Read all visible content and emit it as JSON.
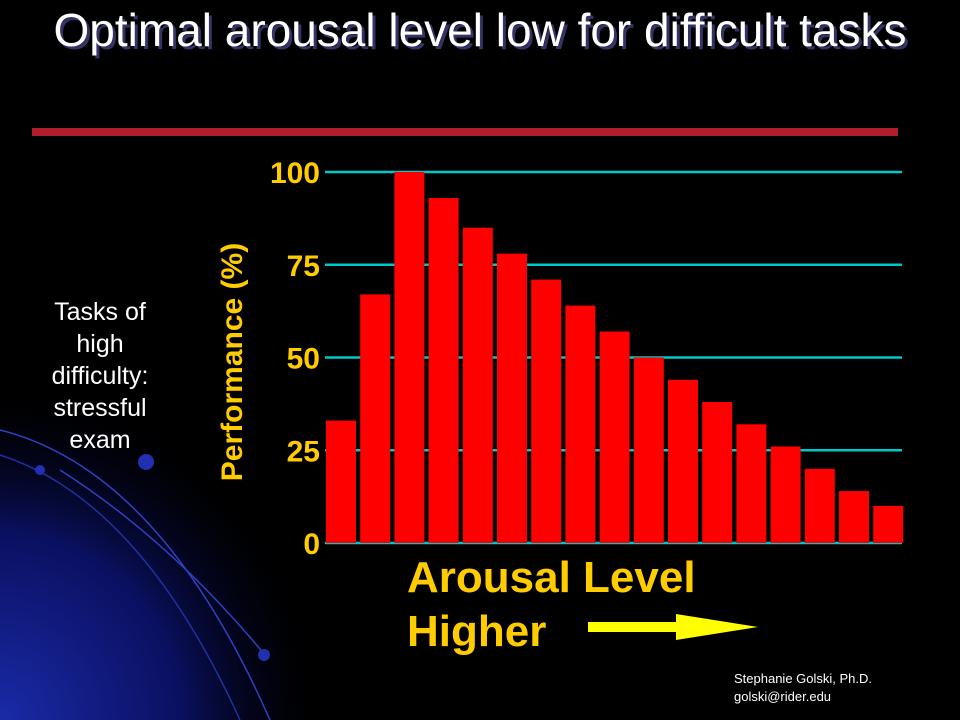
{
  "slide": {
    "title": "Optimal arousal level low for difficult tasks",
    "side_note": [
      "Tasks of",
      "high",
      "difficulty:",
      "stressful",
      "exam"
    ],
    "footer": [
      "Stephanie Golski, Ph.D.",
      "golski@rider.edu"
    ]
  },
  "colors": {
    "background": "#000000",
    "bar": "#ff0000",
    "axis_text": "#ffcc00",
    "gridline": "#00c8c8",
    "arrow": "#ffff00",
    "title_rule": "#b01e2e"
  },
  "chart_data": {
    "type": "bar",
    "ylabel": "Performance (%)",
    "xlabel": "Arousal Level",
    "x_direction_label": "Higher",
    "yticks": [
      0,
      25,
      50,
      75,
      100
    ],
    "ylim": [
      0,
      100
    ],
    "grid": true,
    "values": [
      33,
      67,
      100,
      93,
      85,
      78,
      71,
      64,
      57,
      50,
      44,
      38,
      32,
      26,
      20,
      14,
      10
    ]
  }
}
